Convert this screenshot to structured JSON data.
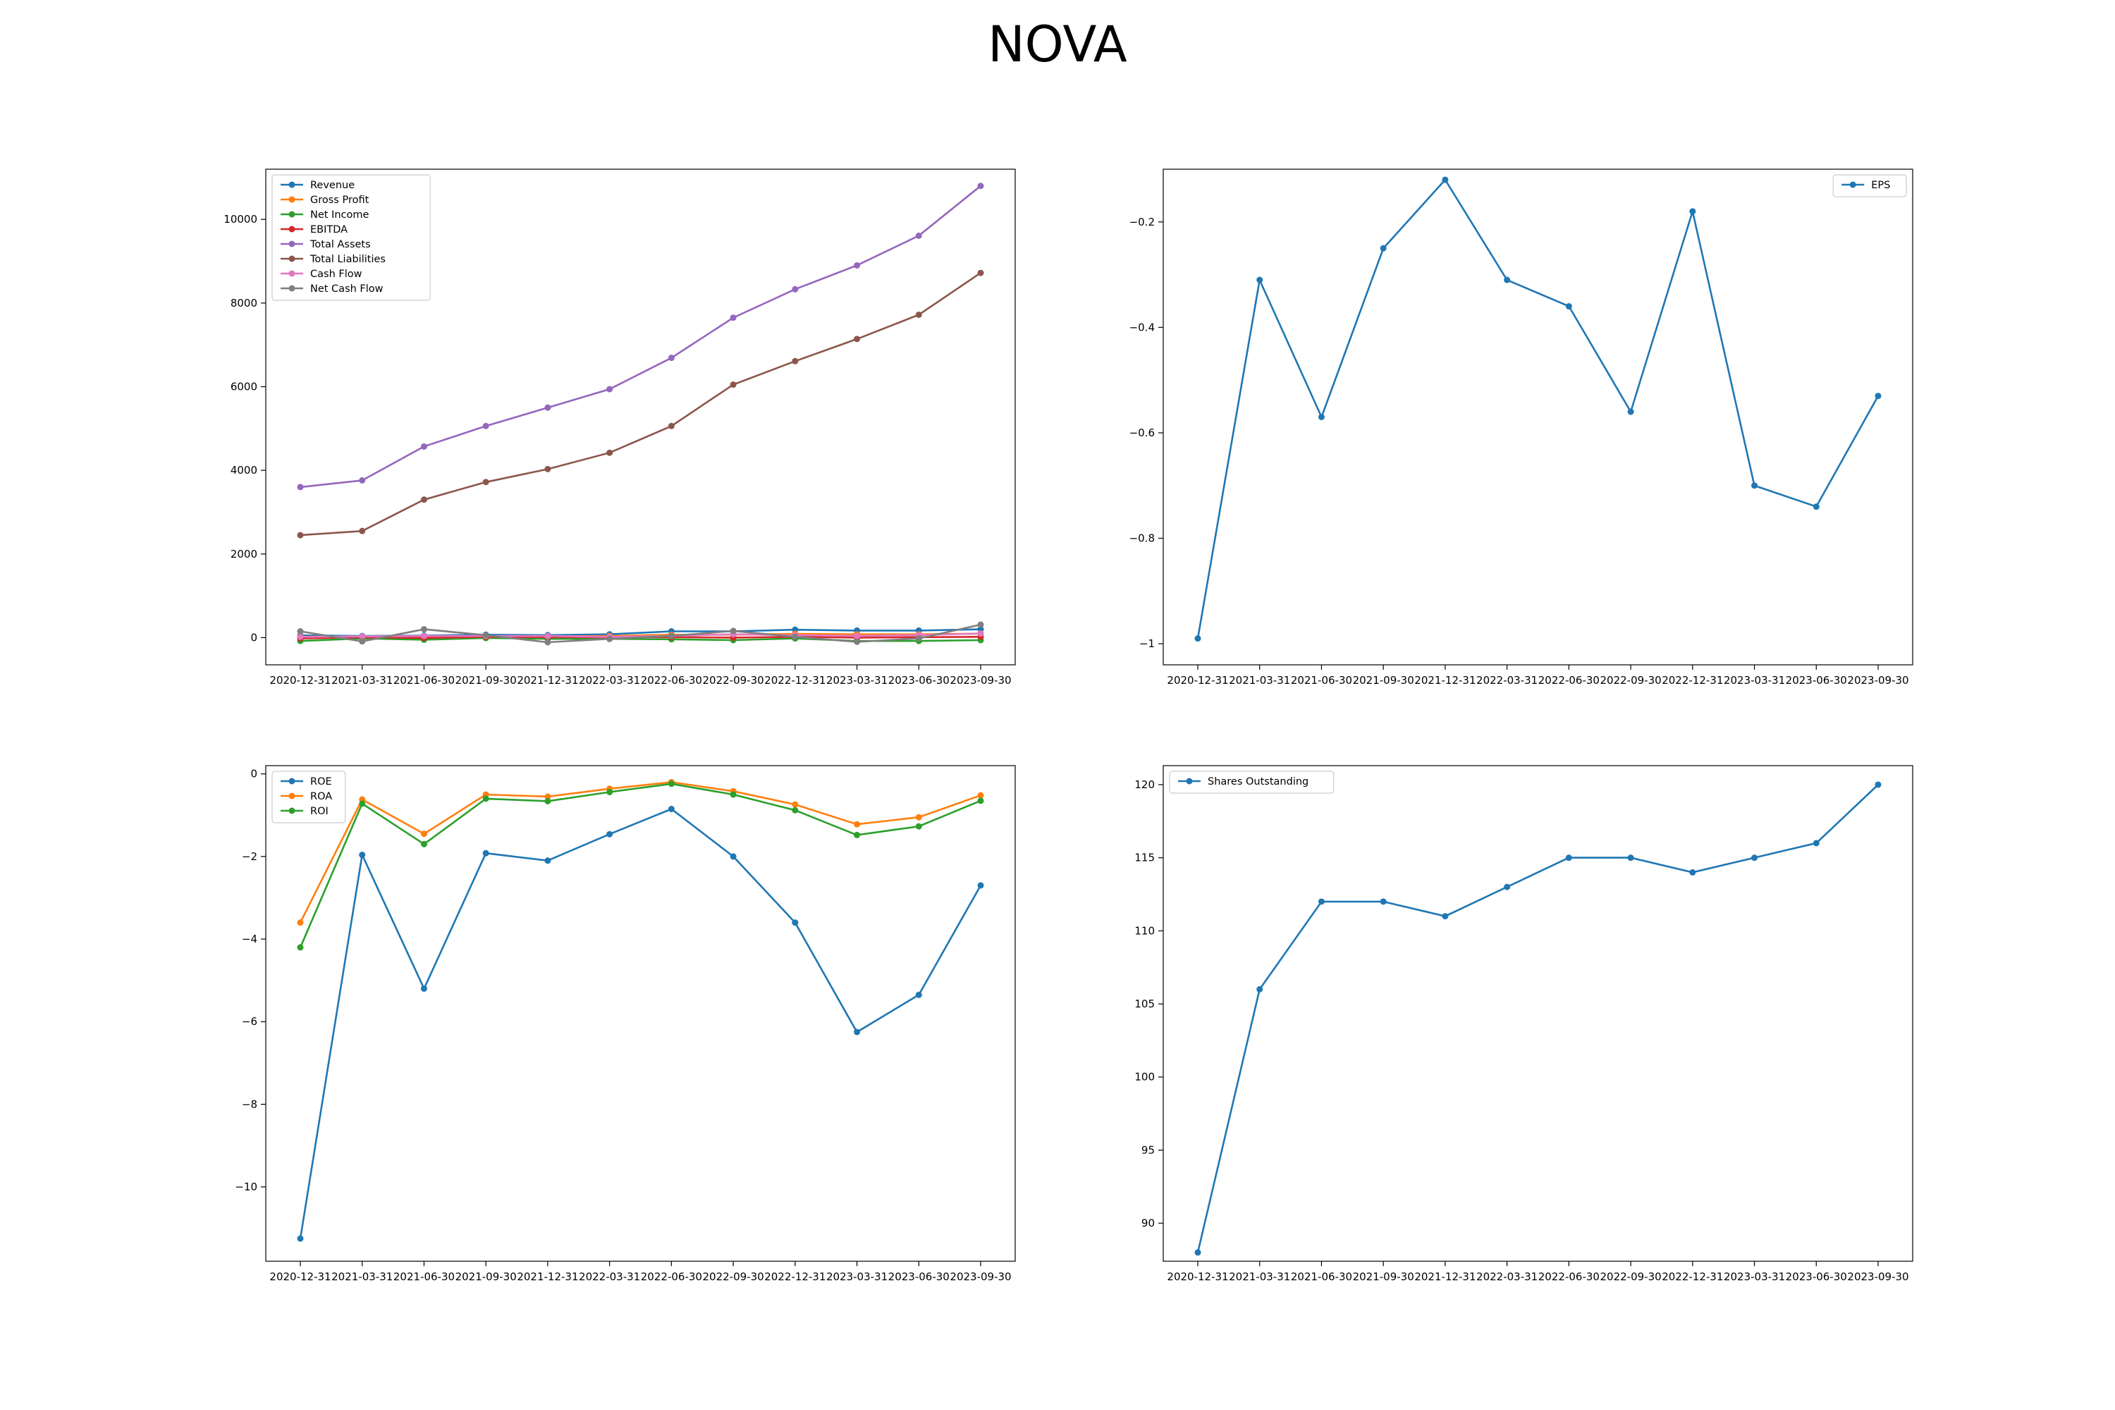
{
  "title": "NOVA",
  "dates": [
    "2020-12-31",
    "2021-03-31",
    "2021-06-30",
    "2021-09-30",
    "2021-12-31",
    "2022-03-31",
    "2022-06-30",
    "2022-09-30",
    "2022-12-31",
    "2023-03-31",
    "2023-06-30",
    "2023-09-30"
  ],
  "chart_data": [
    {
      "type": "line",
      "legend": "top-left",
      "ylim": [
        -650,
        11200
      ],
      "yticks": [
        0,
        2000,
        4000,
        6000,
        8000,
        10000
      ],
      "series": [
        {
          "name": "Revenue",
          "color": "#1f77b4",
          "values": [
            55,
            40,
            50,
            70,
            60,
            80,
            150,
            150,
            190,
            170,
            170,
            200
          ]
        },
        {
          "name": "Gross Profit",
          "color": "#ff7f0e",
          "values": [
            25,
            15,
            20,
            35,
            30,
            40,
            70,
            70,
            90,
            80,
            80,
            95
          ]
        },
        {
          "name": "Net Income",
          "color": "#2ca02c",
          "values": [
            -80,
            -20,
            -50,
            -10,
            -30,
            -30,
            -40,
            -60,
            -20,
            -80,
            -80,
            -60
          ]
        },
        {
          "name": "EBITDA",
          "color": "#d62728",
          "values": [
            -20,
            10,
            -10,
            20,
            10,
            10,
            10,
            0,
            20,
            0,
            10,
            20
          ]
        },
        {
          "name": "Total Assets",
          "color": "#9467bd",
          "values": [
            3600,
            3760,
            4570,
            5060,
            5500,
            5940,
            6690,
            7650,
            8330,
            8900,
            9610,
            10800
          ]
        },
        {
          "name": "Total Liabilities",
          "color": "#8c564b",
          "values": [
            2450,
            2550,
            3300,
            3720,
            4030,
            4420,
            5060,
            6050,
            6610,
            7140,
            7720,
            8720
          ]
        },
        {
          "name": "Cash Flow",
          "color": "#e377c2",
          "values": [
            20,
            30,
            40,
            40,
            40,
            20,
            40,
            80,
            60,
            40,
            60,
            100
          ]
        },
        {
          "name": "Net Cash Flow",
          "color": "#7f7f7f",
          "values": [
            150,
            -90,
            200,
            60,
            -110,
            -30,
            40,
            160,
            20,
            -100,
            -20,
            310
          ]
        }
      ]
    },
    {
      "type": "line",
      "legend": "top-right",
      "ylim": [
        -1.04,
        -0.1
      ],
      "yticks": [
        -1.0,
        -0.8,
        -0.6,
        -0.4,
        -0.2
      ],
      "series": [
        {
          "name": "EPS",
          "color": "#1f77b4",
          "values": [
            -0.99,
            -0.31,
            -0.57,
            -0.25,
            -0.12,
            -0.31,
            -0.36,
            -0.56,
            -0.18,
            -0.7,
            -0.74,
            -0.53
          ]
        }
      ]
    },
    {
      "type": "line",
      "legend": "top-left",
      "ylim": [
        -11.8,
        0.2
      ],
      "yticks": [
        -10,
        -8,
        -6,
        -4,
        -2,
        0
      ],
      "series": [
        {
          "name": "ROE",
          "color": "#1f77b4",
          "values": [
            -11.25,
            -1.96,
            -5.2,
            -1.92,
            -2.1,
            -1.46,
            -0.85,
            -2.0,
            -3.6,
            -6.25,
            -5.35,
            -2.7
          ]
        },
        {
          "name": "ROA",
          "color": "#ff7f0e",
          "values": [
            -3.6,
            -0.62,
            -1.45,
            -0.5,
            -0.55,
            -0.36,
            -0.2,
            -0.42,
            -0.74,
            -1.22,
            -1.05,
            -0.52
          ]
        },
        {
          "name": "ROI",
          "color": "#2ca02c",
          "values": [
            -4.2,
            -0.72,
            -1.7,
            -0.6,
            -0.66,
            -0.44,
            -0.24,
            -0.5,
            -0.88,
            -1.48,
            -1.27,
            -0.65
          ]
        }
      ]
    },
    {
      "type": "line",
      "legend": "top-left",
      "ylim": [
        87.4,
        121.3
      ],
      "yticks": [
        90,
        95,
        100,
        105,
        110,
        115,
        120
      ],
      "series": [
        {
          "name": "Shares Outstanding",
          "color": "#1f77b4",
          "values": [
            88,
            106,
            112,
            112,
            111,
            113,
            115,
            115,
            114,
            115,
            116,
            120
          ]
        }
      ]
    }
  ]
}
